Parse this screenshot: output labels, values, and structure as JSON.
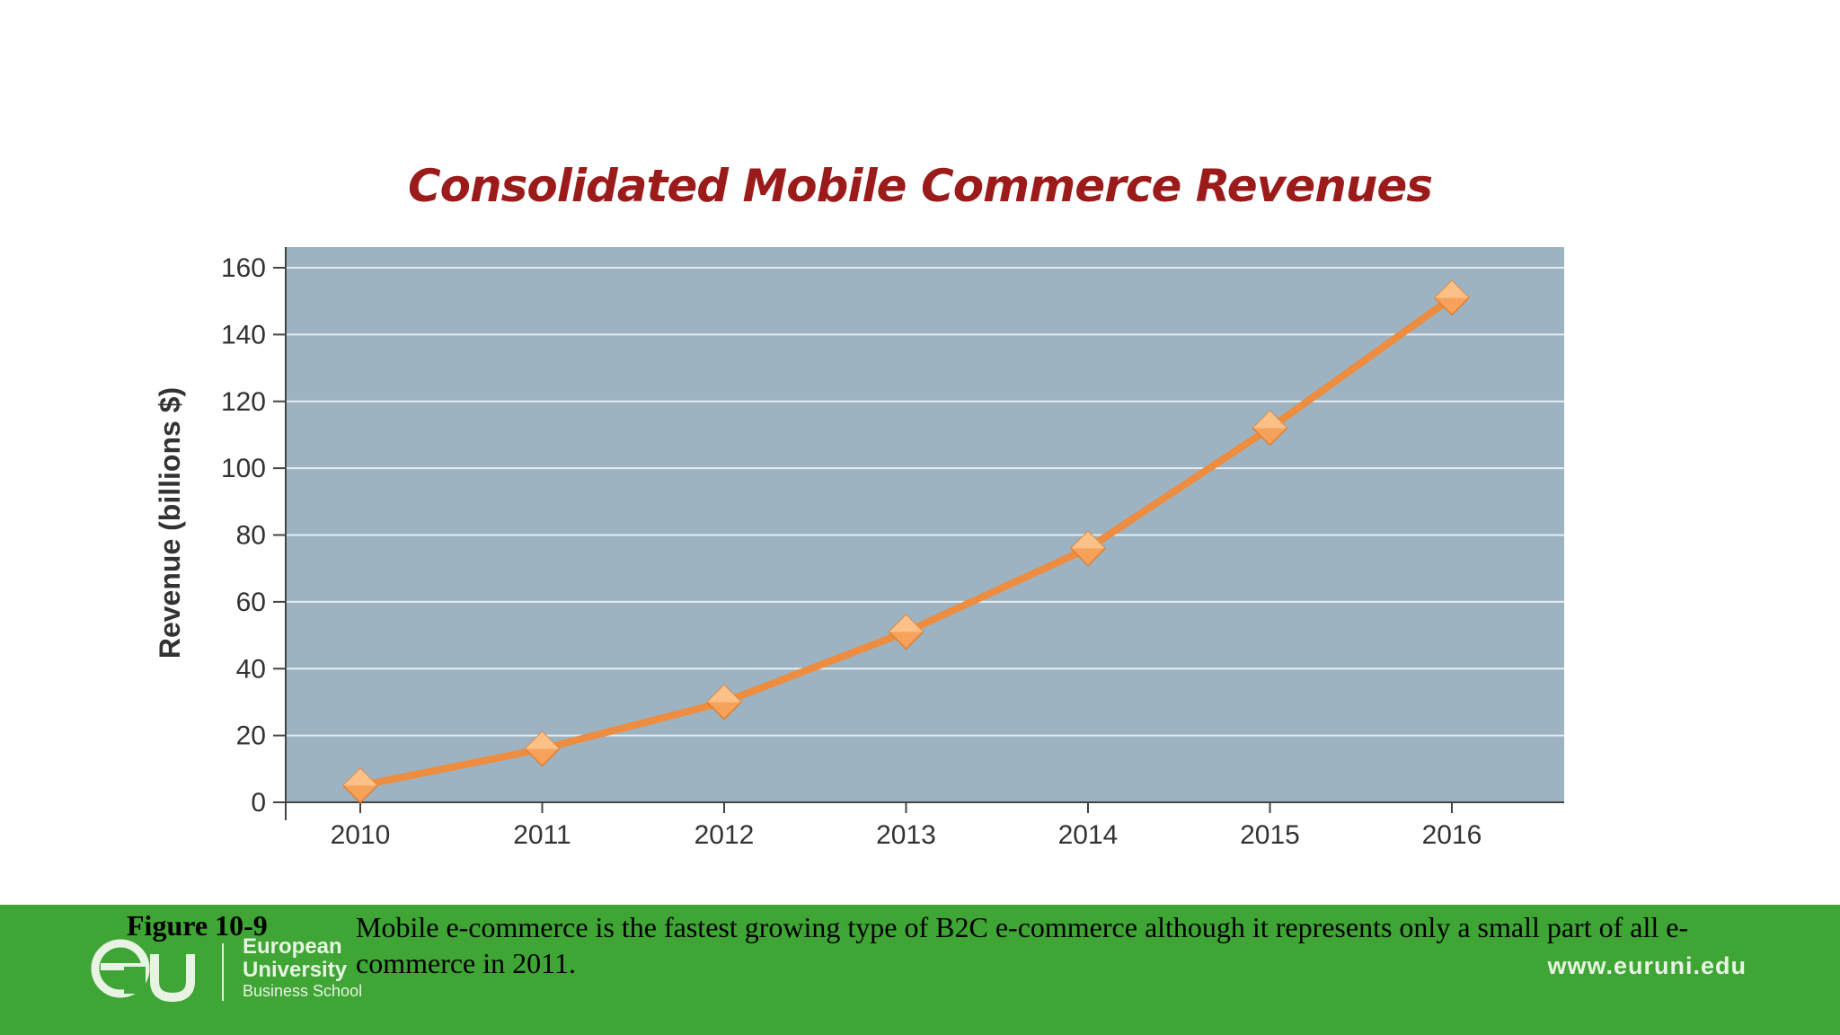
{
  "slide": {
    "title": "Consolidated Mobile Commerce Revenues"
  },
  "chart_data": {
    "type": "line",
    "title": "Consolidated Mobile Commerce Revenues",
    "xlabel": "",
    "ylabel": "Revenue (billions $)",
    "categories": [
      "2010",
      "2011",
      "2012",
      "2013",
      "2014",
      "2015",
      "2016"
    ],
    "series": [
      {
        "name": "Revenue",
        "values": [
          5,
          16,
          30,
          51,
          76,
          112,
          151
        ]
      }
    ],
    "ylim": [
      0,
      160
    ],
    "yticks": [
      0,
      20,
      40,
      60,
      80,
      100,
      120,
      140,
      160
    ],
    "grid": true,
    "colors": {
      "plot_background": "#9db3c1",
      "grid": "#e6edf1",
      "line": "#ee8c3f",
      "marker": "#f7a25b",
      "marker_highlight": "#fbc791"
    }
  },
  "caption": {
    "label": "Figure 10-9",
    "text": "Mobile e-commerce is the fastest growing type of B2C e-commerce although it represents only a small part of all e-commerce in 2011."
  },
  "footer": {
    "brand_line1": "European",
    "brand_line2": "University",
    "brand_line3": "Business School",
    "url": "www.euruni.edu",
    "logo_icon": "eu-logo-icon",
    "background": "#3fa535"
  }
}
